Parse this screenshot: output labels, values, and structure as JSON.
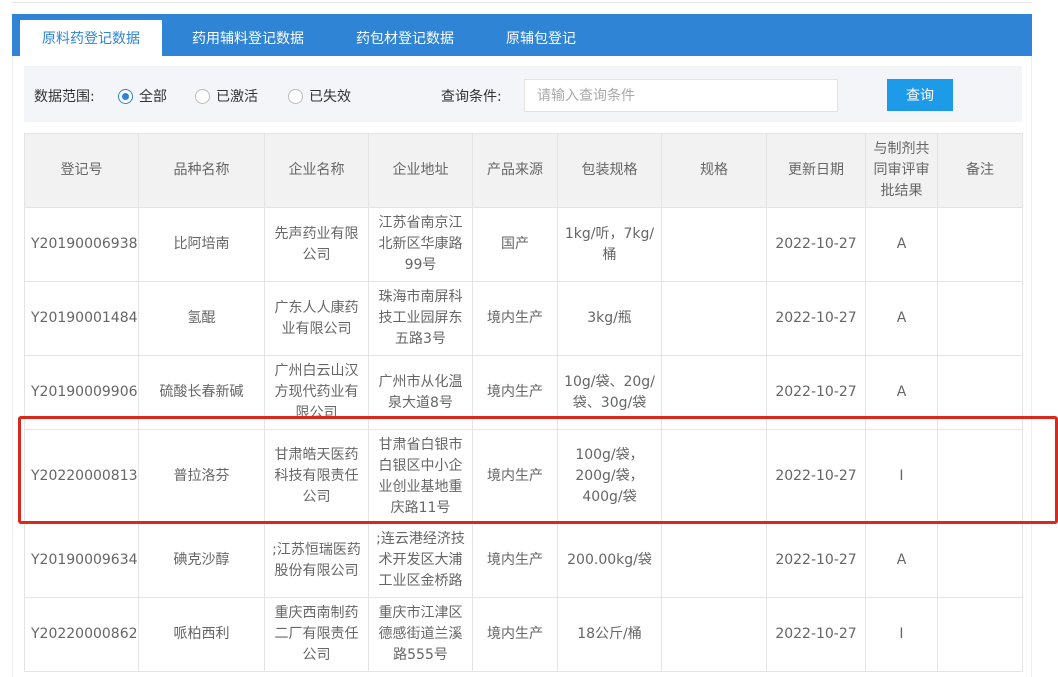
{
  "tabs": [
    {
      "label": "原料药登记数据",
      "active": true
    },
    {
      "label": "药用辅料登记数据"
    },
    {
      "label": "药包材登记数据"
    },
    {
      "label": "原辅包登记"
    }
  ],
  "filter": {
    "scope_label": "数据范围:",
    "options": [
      {
        "label": "全部",
        "checked": true
      },
      {
        "label": "已激活"
      },
      {
        "label": "已失效"
      }
    ],
    "query_label": "查询条件:",
    "query_placeholder": "请输入查询条件",
    "query_value": "",
    "query_button": "查询"
  },
  "table": {
    "headers": [
      "登记号",
      "品种名称",
      "企业名称",
      "企业地址",
      "产品来源",
      "包装规格",
      "规格",
      "更新日期",
      "与制剂共同审评审批结果",
      "备注"
    ],
    "rows": [
      [
        "Y20190006938",
        "比阿培南",
        "先声药业有限公司",
        "江苏省南京江北新区华康路99号",
        "国产",
        "1kg/听，7kg/桶",
        "",
        "2022-10-27",
        "A",
        ""
      ],
      [
        "Y20190001484",
        "氢醌",
        "广东人人康药业有限公司",
        "珠海市南屏科技工业园屏东五路3号",
        "境内生产",
        "3kg/瓶",
        "",
        "2022-10-27",
        "A",
        ""
      ],
      [
        "Y20190009906",
        "硫酸长春新碱",
        "广州白云山汉方现代药业有限公司",
        "广州市从化温泉大道8号",
        "境内生产",
        "10g/袋、20g/袋、30g/袋",
        "",
        "2022-10-27",
        "A",
        ""
      ],
      [
        "Y20220000813",
        "普拉洛芬",
        "甘肃皓天医药科技有限责任公司",
        "甘肃省白银市白银区中小企业创业基地重庆路11号",
        "境内生产",
        "100g/袋，200g/袋，400g/袋",
        "",
        "2022-10-27",
        "I",
        ""
      ],
      [
        "Y20190009634",
        "碘克沙醇",
        ";江苏恒瑞医药股份有限公司",
        ";连云港经济技术开发区大浦工业区金桥路",
        "境内生产",
        "200.00kg/袋",
        "",
        "2022-10-27",
        "A",
        ""
      ],
      [
        "Y20220000862",
        "哌柏西利",
        "重庆西南制药二厂有限责任公司",
        "重庆市江津区德感街道兰溪路555号",
        "境内生产",
        "18公斤/桶",
        "",
        "2022-10-27",
        "I",
        ""
      ]
    ],
    "highlighted_row": 3
  },
  "colors": {
    "primary": "#2F84D6",
    "button": "#1E9BE8",
    "highlight": "#d9281e"
  }
}
